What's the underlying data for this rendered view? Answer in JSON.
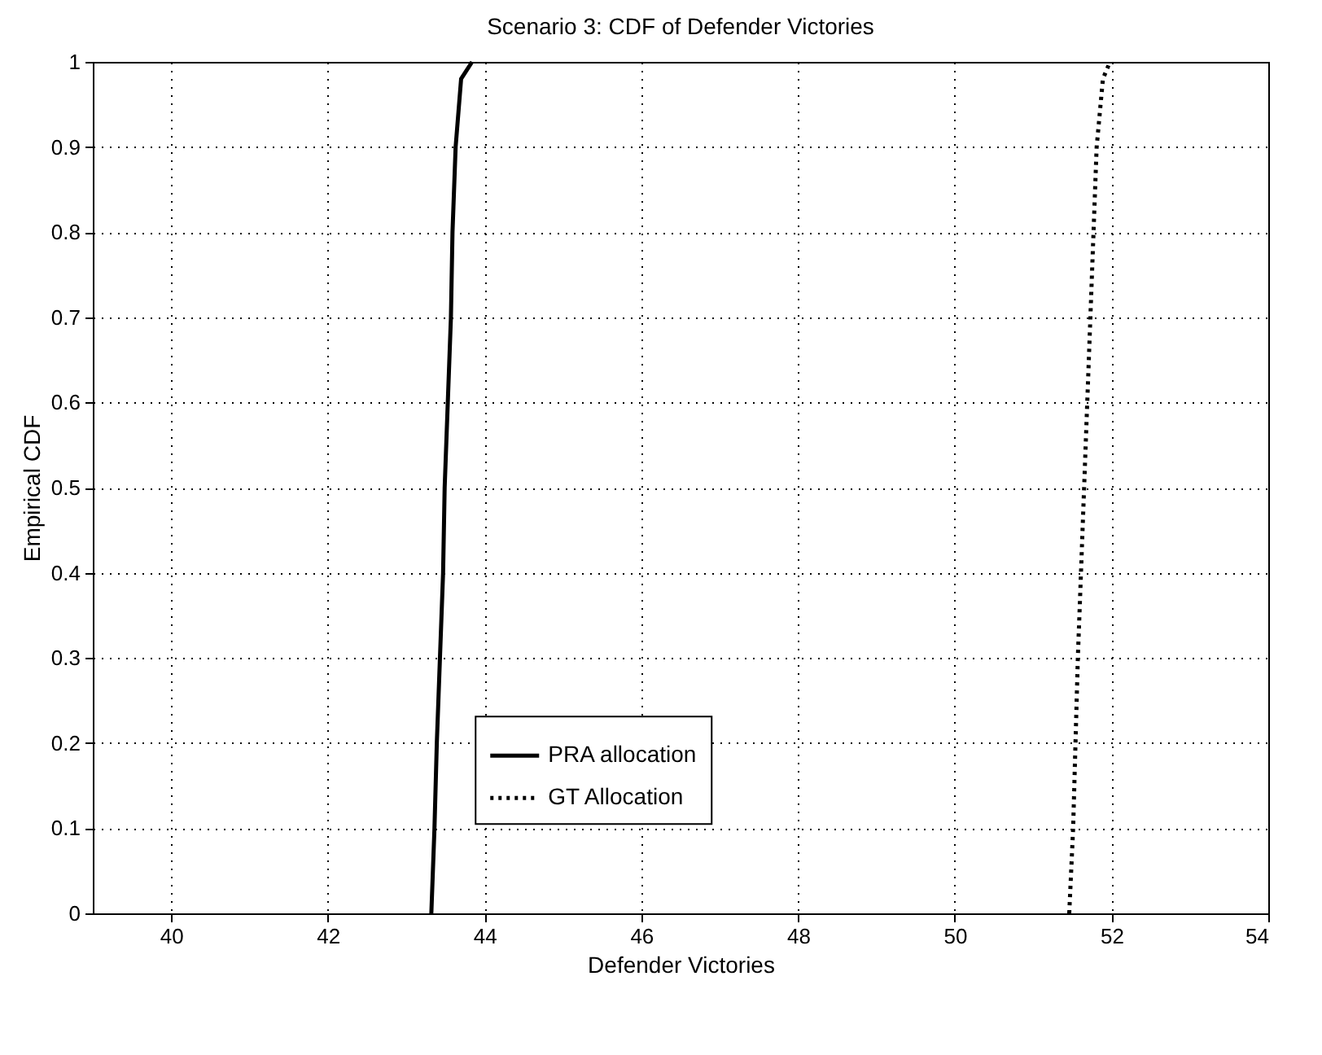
{
  "chart_data": {
    "type": "line",
    "title": "Scenario 3: CDF of Defender Victories",
    "xlabel": "Defender Victories",
    "ylabel": "Empirical CDF",
    "xlim": [
      39,
      54
    ],
    "xticks": [
      40,
      42,
      44,
      46,
      48,
      50,
      52,
      54
    ],
    "ylim": [
      0,
      1
    ],
    "yticks": [
      0,
      0.1,
      0.2,
      0.3,
      0.4,
      0.5,
      0.6,
      0.7,
      0.8,
      0.9,
      1
    ],
    "grid": true,
    "legend": "bottom",
    "marker": "none",
    "series": [
      {
        "name": "PRA allocation",
        "color": "#000000",
        "line_style": "solid",
        "x": [
          43.32,
          43.36,
          43.39,
          43.43,
          43.47,
          43.49,
          43.53,
          43.57,
          43.59,
          43.63,
          43.7,
          43.84
        ],
        "values": [
          0,
          0.1,
          0.2,
          0.3,
          0.4,
          0.5,
          0.6,
          0.7,
          0.8,
          0.9,
          0.98,
          1
        ]
      },
      {
        "name": "GT Allocation",
        "color": "#000000",
        "line_style": "dotted",
        "x": [
          51.46,
          51.51,
          51.54,
          51.57,
          51.61,
          51.65,
          51.69,
          51.73,
          51.77,
          51.81,
          51.89,
          51.98
        ],
        "values": [
          0,
          0.1,
          0.2,
          0.3,
          0.4,
          0.5,
          0.6,
          0.7,
          0.8,
          0.9,
          0.98,
          1
        ]
      }
    ]
  }
}
